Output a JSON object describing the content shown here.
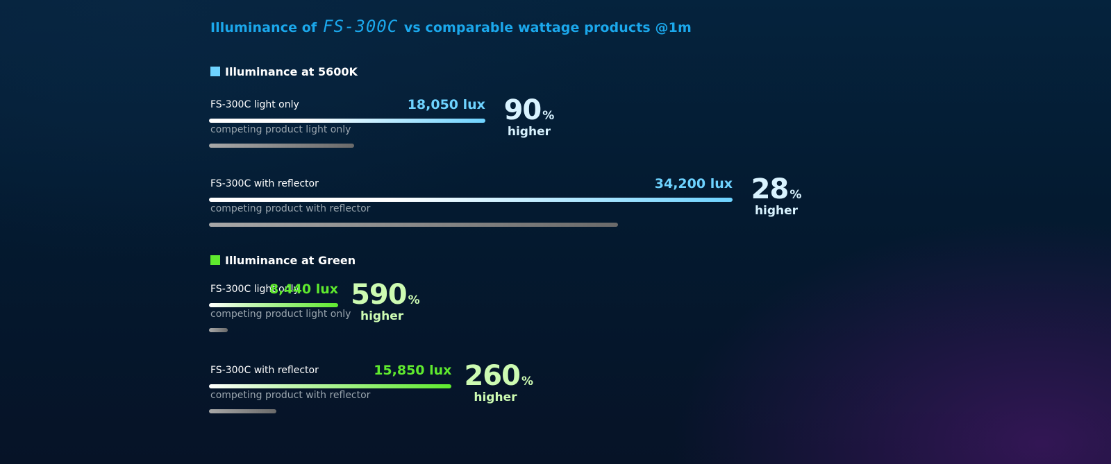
{
  "title": {
    "prefix": "Illuminance of",
    "model": "FS-300C",
    "suffix": "vs comparable wattage products @1m"
  },
  "colors": {
    "title": "#1ba8ec",
    "cct_accent": "#6ed3ff",
    "green_accent": "#5fea2e",
    "cct_pct": "#d9f3ff",
    "green_pct": "#cdfbb2",
    "competitor_bar": "#8a8a8a"
  },
  "chart_data": {
    "type": "bar",
    "orientation": "horizontal",
    "unit": "lux",
    "title": "Illuminance of FS-300C vs comparable wattage products @1m",
    "groups": [
      {
        "name": "Illuminance at 5600K",
        "swatch_color": "#6ed3ff",
        "rows": [
          {
            "label": "FS-300C light only",
            "value": 18050,
            "value_label": "18,050 lux",
            "competitor_label": "competing product light only",
            "competitor_value": 9500,
            "pct": "90",
            "pct_sign": "%",
            "pct_word": "higher"
          },
          {
            "label": "FS-300C with reflector",
            "value": 34200,
            "value_label": "34,200 lux",
            "competitor_label": "competing product with reflector",
            "competitor_value": 26720,
            "pct": "28",
            "pct_sign": "%",
            "pct_word": "higher"
          }
        ]
      },
      {
        "name": "Illuminance at Green",
        "swatch_color": "#5fea2e",
        "rows": [
          {
            "label": "FS-300C light only",
            "value": 8440,
            "value_label": "8,440 lux",
            "competitor_label": "competing product light only",
            "competitor_value": 1225,
            "pct": "590",
            "pct_sign": "%",
            "pct_word": "higher"
          },
          {
            "label": "FS-300C with reflector",
            "value": 15850,
            "value_label": "15,850 lux",
            "competitor_label": "competing product with reflector",
            "competitor_value": 4400,
            "pct": "260",
            "pct_sign": "%",
            "pct_word": "higher"
          }
        ]
      }
    ],
    "xlim": [
      0,
      34200
    ]
  }
}
